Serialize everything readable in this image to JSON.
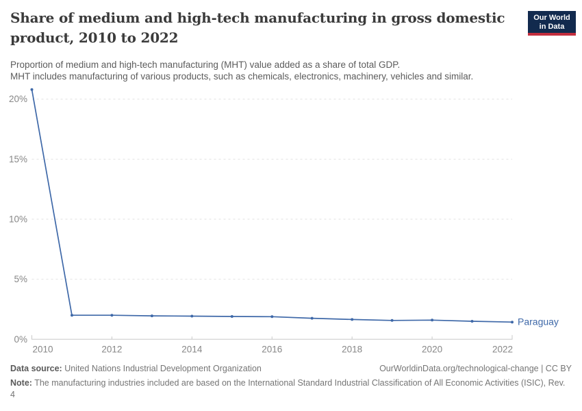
{
  "header": {
    "title_lines": [
      "Share of medium and high-tech manufacturing in gross domestic",
      "product, 2010 to 2022"
    ],
    "subtitle_lines": [
      "Proportion of medium and high-tech manufacturing (MHT) value added as a share of total GDP.",
      "MHT includes manufacturing of various products, such as chemicals, electronics, machinery, vehicles and similar."
    ],
    "logo": {
      "line1": "Our World",
      "line2": "in Data"
    }
  },
  "chart_data": {
    "type": "line",
    "title": "Share of medium and high-tech manufacturing in gross domestic product, 2010 to 2022",
    "x": [
      2010,
      2011,
      2012,
      2013,
      2014,
      2015,
      2016,
      2017,
      2018,
      2019,
      2020,
      2021,
      2022
    ],
    "series": [
      {
        "name": "Paraguay",
        "color": "#3e68a8",
        "values": [
          20.8,
          2.0,
          2.0,
          1.95,
          1.93,
          1.9,
          1.88,
          1.75,
          1.65,
          1.57,
          1.6,
          1.5,
          1.43
        ]
      }
    ],
    "xlabel": "",
    "ylabel": "",
    "ylim": [
      0,
      21
    ],
    "y_ticks": [
      0,
      5,
      10,
      15,
      20
    ],
    "y_tick_suffix": "%",
    "x_ticks": [
      2010,
      2012,
      2014,
      2016,
      2018,
      2020,
      2022
    ],
    "grid": "horizontal dashed",
    "legend_position": "end-of-line label"
  },
  "footer": {
    "datasource_label": "Data source:",
    "datasource_text": " United Nations Industrial Development Organization",
    "link": "OurWorldinData.org/technological-change | CC BY",
    "note_label": "Note:",
    "note_text": " The manufacturing industries included are based on the International Standard Industrial Classification of All Economic Activities (ISIC), Rev. 4"
  },
  "colors": {
    "line": "#3e68a8",
    "gridline": "#e2e2e2",
    "axis": "#c8c8c8",
    "tick_label": "#878787",
    "title": "#3b3b3b",
    "subtitle": "#5b5b5b",
    "logo_bg": "#122a4e",
    "logo_stripe": "#c32e3e"
  }
}
